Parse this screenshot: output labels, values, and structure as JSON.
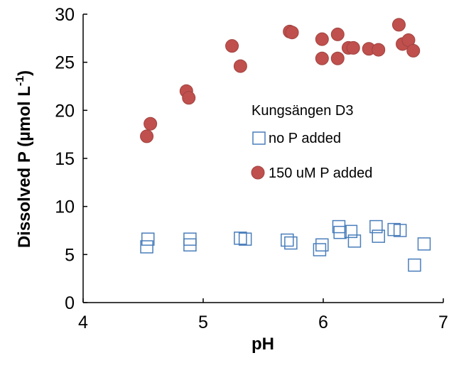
{
  "chart_data": {
    "type": "scatter",
    "xlabel": "pH",
    "ylabel": "Dissolved P (µmol L",
    "ylabel_sup": "-1",
    "ylabel_close": ")",
    "xlim": [
      4,
      7
    ],
    "ylim": [
      0,
      30
    ],
    "x_ticks": [
      "4",
      "5",
      "6",
      "7"
    ],
    "y_ticks": [
      "0",
      "5",
      "10",
      "15",
      "20",
      "25",
      "30"
    ],
    "grid": false,
    "legend_title": "Kungsängen D3",
    "series": [
      {
        "name": "no P added",
        "marker": "open-square",
        "color": "#4a7ebb",
        "points": [
          [
            4.53,
            5.8
          ],
          [
            4.54,
            6.6
          ],
          [
            4.89,
            6.0
          ],
          [
            4.89,
            6.6
          ],
          [
            5.31,
            6.7
          ],
          [
            5.35,
            6.6
          ],
          [
            5.7,
            6.5
          ],
          [
            5.73,
            6.2
          ],
          [
            5.97,
            5.5
          ],
          [
            5.99,
            6.0
          ],
          [
            6.13,
            7.9
          ],
          [
            6.14,
            7.3
          ],
          [
            6.23,
            7.4
          ],
          [
            6.26,
            6.4
          ],
          [
            6.44,
            7.9
          ],
          [
            6.46,
            6.9
          ],
          [
            6.59,
            7.6
          ],
          [
            6.64,
            7.5
          ],
          [
            6.76,
            3.9
          ],
          [
            6.84,
            6.1
          ]
        ]
      },
      {
        "name": "150 uM P added",
        "marker": "filled-circle",
        "color": "#c0504d",
        "points": [
          [
            4.53,
            17.3
          ],
          [
            4.56,
            18.6
          ],
          [
            4.86,
            22.0
          ],
          [
            4.88,
            21.3
          ],
          [
            5.24,
            26.7
          ],
          [
            5.31,
            24.6
          ],
          [
            5.72,
            28.2
          ],
          [
            5.74,
            28.1
          ],
          [
            5.99,
            27.4
          ],
          [
            5.99,
            25.4
          ],
          [
            6.12,
            27.9
          ],
          [
            6.12,
            25.4
          ],
          [
            6.21,
            26.5
          ],
          [
            6.25,
            26.5
          ],
          [
            6.38,
            26.4
          ],
          [
            6.46,
            26.3
          ],
          [
            6.63,
            28.9
          ],
          [
            6.66,
            26.9
          ],
          [
            6.71,
            27.3
          ],
          [
            6.75,
            26.2
          ]
        ]
      }
    ]
  }
}
